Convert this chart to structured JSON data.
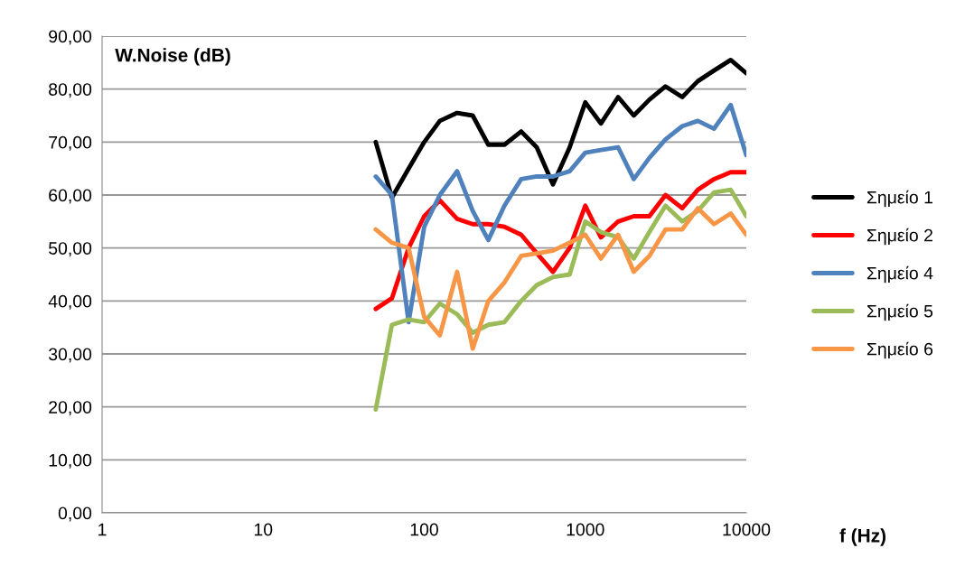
{
  "chart_data": {
    "type": "line",
    "title": "W.Noise (dB)",
    "xlabel": "f (Hz)",
    "log": "x",
    "x": [
      50,
      63,
      80,
      100,
      125,
      160,
      200,
      250,
      315,
      400,
      500,
      630,
      800,
      1000,
      1250,
      1600,
      2000,
      2500,
      3150,
      4000,
      5000,
      6300,
      8000,
      10000
    ],
    "series": [
      {
        "name": "Σημείο 1",
        "color": "#000000",
        "values": [
          70,
          59.5,
          65,
          70,
          74,
          75.5,
          75,
          69.5,
          69.5,
          72,
          69,
          62,
          69,
          77.5,
          73.5,
          78.5,
          75,
          78,
          80.5,
          78.5,
          81.5,
          83.5,
          85.5,
          83
        ]
      },
      {
        "name": "Σημείο 2",
        "color": "#ff0000",
        "values": [
          38.5,
          40.5,
          50,
          56,
          59,
          55.5,
          54.5,
          54.5,
          54,
          52.5,
          49,
          45.5,
          50,
          58,
          52,
          55,
          56,
          56,
          60,
          57.5,
          61,
          63,
          64.3,
          64.3
        ]
      },
      {
        "name": "Σημείο 4",
        "color": "#4f81bd",
        "values": [
          63.5,
          60,
          36,
          54,
          60,
          64.5,
          57,
          51.5,
          58,
          63,
          63.5,
          63.5,
          64.5,
          68,
          68.5,
          69,
          63,
          67,
          70.5,
          73,
          74,
          72.5,
          77,
          67.5
        ]
      },
      {
        "name": "Σημείο 5",
        "color": "#9bbb59",
        "values": [
          19.5,
          35.5,
          36.5,
          36,
          39.5,
          37.5,
          34,
          35.5,
          36,
          40,
          43,
          44.5,
          45,
          55,
          53,
          52,
          48,
          53,
          58,
          55,
          57,
          60.5,
          61,
          56
        ]
      },
      {
        "name": "Σημείο 6",
        "color": "#f79646",
        "values": [
          53.5,
          51,
          50,
          37,
          33.5,
          45.5,
          31,
          40,
          43.5,
          48.5,
          49,
          49.5,
          51,
          52.5,
          48,
          52.5,
          45.5,
          48.5,
          53.5,
          53.5,
          57.5,
          54.5,
          56.5,
          52.5
        ]
      }
    ],
    "xlim": [
      1,
      10000
    ],
    "xticks": [
      1,
      10,
      100,
      1000,
      10000
    ],
    "ylim": [
      0,
      90
    ],
    "yticks": [
      {
        "value": 0,
        "label": "0,00"
      },
      {
        "value": 10,
        "label": "10,00"
      },
      {
        "value": 20,
        "label": "20,00"
      },
      {
        "value": 30,
        "label": "30,00"
      },
      {
        "value": 40,
        "label": "40,00"
      },
      {
        "value": 50,
        "label": "50,00"
      },
      {
        "value": 60,
        "label": "60,00"
      },
      {
        "value": 70,
        "label": "70,00"
      },
      {
        "value": 80,
        "label": "80,00"
      },
      {
        "value": 90,
        "label": "90,00"
      }
    ],
    "grid": "y",
    "legend": "right",
    "marker": "none",
    "line_style": "solid"
  }
}
